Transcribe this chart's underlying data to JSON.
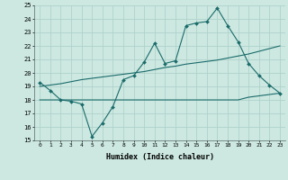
{
  "xlabel": "Humidex (Indice chaleur)",
  "xlim": [
    -0.5,
    23.5
  ],
  "ylim": [
    15,
    25
  ],
  "yticks": [
    15,
    16,
    17,
    18,
    19,
    20,
    21,
    22,
    23,
    24,
    25
  ],
  "xticks": [
    0,
    1,
    2,
    3,
    4,
    5,
    6,
    7,
    8,
    9,
    10,
    11,
    12,
    13,
    14,
    15,
    16,
    17,
    18,
    19,
    20,
    21,
    22,
    23
  ],
  "bg_color": "#cce8e0",
  "line_color": "#1a6b6b",
  "grid_color": "#aacfc8",
  "line1_x": [
    0,
    1,
    2,
    3,
    4,
    5,
    6,
    7,
    8,
    9,
    10,
    11,
    12,
    13,
    14,
    15,
    16,
    17,
    18,
    19,
    20,
    21,
    22,
    23
  ],
  "line1_y": [
    19.3,
    18.7,
    18.0,
    17.9,
    17.7,
    15.3,
    16.3,
    17.5,
    19.5,
    19.8,
    20.8,
    22.2,
    20.7,
    20.9,
    23.5,
    23.7,
    23.8,
    24.8,
    23.5,
    22.3,
    20.7,
    19.8,
    19.1,
    18.5
  ],
  "line2_x": [
    0,
    1,
    2,
    3,
    4,
    5,
    6,
    7,
    8,
    9,
    10,
    11,
    12,
    13,
    14,
    15,
    16,
    17,
    18,
    19,
    20,
    21,
    22,
    23
  ],
  "line2_y": [
    18.0,
    18.0,
    18.0,
    18.0,
    18.0,
    18.0,
    18.0,
    18.0,
    18.0,
    18.0,
    18.0,
    18.0,
    18.0,
    18.0,
    18.0,
    18.0,
    18.0,
    18.0,
    18.0,
    18.0,
    18.2,
    18.3,
    18.4,
    18.5
  ],
  "line3_x": [
    0,
    1,
    2,
    3,
    4,
    5,
    6,
    7,
    8,
    9,
    10,
    11,
    12,
    13,
    14,
    15,
    16,
    17,
    18,
    19,
    20,
    21,
    22,
    23
  ],
  "line3_y": [
    19.0,
    19.1,
    19.2,
    19.35,
    19.5,
    19.6,
    19.7,
    19.8,
    19.9,
    20.0,
    20.1,
    20.25,
    20.4,
    20.5,
    20.65,
    20.75,
    20.85,
    20.95,
    21.1,
    21.25,
    21.4,
    21.6,
    21.8,
    22.0
  ]
}
